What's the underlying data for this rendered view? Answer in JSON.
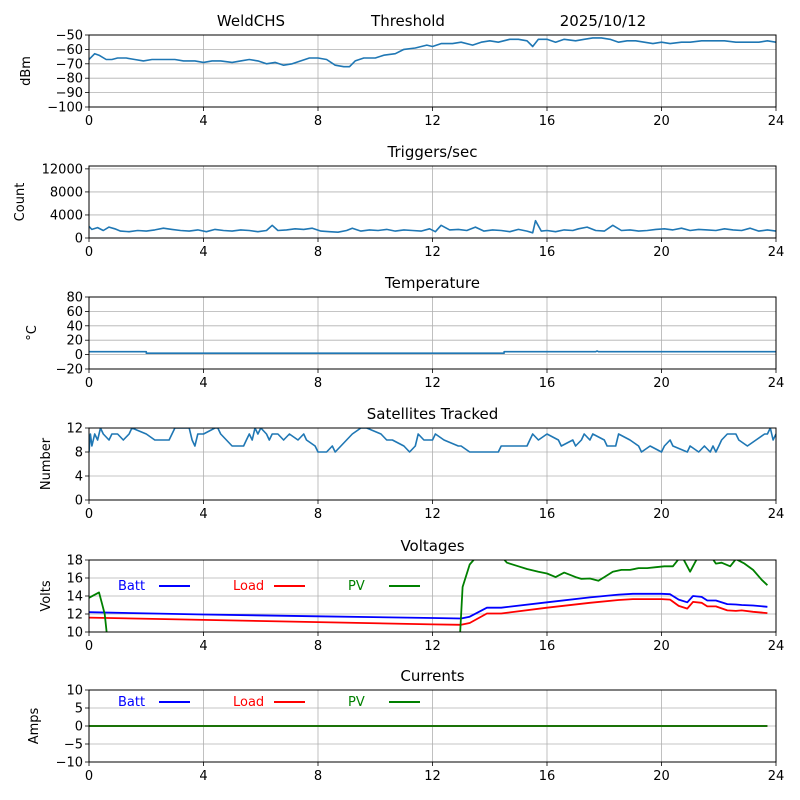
{
  "header": {
    "station": "WeldCHS",
    "mode": "Threshold",
    "date": "2025/10/12"
  },
  "chart_data": [
    {
      "type": "line",
      "title": "",
      "ylabel": "dBm",
      "xlabel": "",
      "xlim": [
        0,
        24
      ],
      "ylim": [
        -100,
        -50
      ],
      "xticks": [
        0,
        4,
        8,
        12,
        16,
        20,
        24
      ],
      "yticks": [
        -100,
        -90,
        -80,
        -70,
        -60,
        -50
      ],
      "ytick_labels": [
        "−100",
        "−90",
        "−80",
        "−70",
        "−60",
        "−50"
      ],
      "grid": true,
      "series": [
        {
          "name": "Threshold",
          "color": "#1f77b4",
          "x": [
            0,
            0.2,
            0.35,
            0.6,
            0.8,
            1.0,
            1.3,
            1.6,
            1.9,
            2.2,
            2.6,
            3.0,
            3.3,
            3.7,
            4.0,
            4.3,
            4.6,
            5.0,
            5.3,
            5.6,
            5.9,
            6.2,
            6.5,
            6.8,
            7.1,
            7.4,
            7.7,
            8.0,
            8.3,
            8.6,
            8.9,
            9.1,
            9.3,
            9.6,
            10.0,
            10.3,
            10.7,
            11.0,
            11.4,
            11.8,
            12.0,
            12.3,
            12.7,
            13.0,
            13.4,
            13.7,
            14.0,
            14.3,
            14.7,
            15.0,
            15.3,
            15.5,
            15.7,
            16.0,
            16.3,
            16.6,
            17.0,
            17.3,
            17.6,
            17.9,
            18.2,
            18.5,
            18.8,
            19.1,
            19.4,
            19.7,
            20.0,
            20.3,
            20.7,
            21.0,
            21.4,
            21.8,
            22.2,
            22.6,
            23.0,
            23.4,
            23.7,
            24.0
          ],
          "y": [
            -67,
            -63,
            -64,
            -67,
            -67,
            -66,
            -66,
            -67,
            -68,
            -67,
            -67,
            -67,
            -68,
            -68,
            -69,
            -68,
            -68,
            -69,
            -68,
            -67,
            -68,
            -70,
            -69,
            -71,
            -70,
            -68,
            -66,
            -66,
            -67,
            -71,
            -72,
            -72,
            -68,
            -66,
            -66,
            -64,
            -63,
            -60,
            -59,
            -57,
            -58,
            -56,
            -56,
            -55,
            -57,
            -55,
            -54,
            -55,
            -53,
            -53,
            -54,
            -58,
            -53,
            -53,
            -55,
            -53,
            -54,
            -53,
            -52,
            -52,
            -53,
            -55,
            -54,
            -54,
            -55,
            -56,
            -55,
            -56,
            -55,
            -55,
            -54,
            -54,
            -54,
            -55,
            -55,
            -55,
            -54,
            -55
          ]
        }
      ]
    },
    {
      "type": "line",
      "title": "Triggers/sec",
      "ylabel": "Count",
      "xlabel": "",
      "xlim": [
        0,
        24
      ],
      "ylim": [
        0,
        12500
      ],
      "xticks": [
        0,
        4,
        8,
        12,
        16,
        20,
        24
      ],
      "yticks": [
        0,
        4000,
        8000,
        12000
      ],
      "ytick_labels": [
        "0",
        "4000",
        "8000",
        "12000"
      ],
      "grid": true,
      "series": [
        {
          "name": "Triggers",
          "color": "#1f77b4",
          "x": [
            0,
            0.1,
            0.3,
            0.5,
            0.7,
            0.9,
            1.1,
            1.4,
            1.7,
            2.0,
            2.3,
            2.6,
            2.9,
            3.2,
            3.5,
            3.8,
            4.1,
            4.4,
            4.7,
            5.0,
            5.3,
            5.6,
            5.9,
            6.2,
            6.4,
            6.6,
            6.9,
            7.2,
            7.5,
            7.8,
            8.1,
            8.4,
            8.7,
            9.0,
            9.2,
            9.5,
            9.8,
            10.1,
            10.4,
            10.7,
            11.0,
            11.3,
            11.6,
            11.9,
            12.1,
            12.3,
            12.6,
            12.9,
            13.2,
            13.5,
            13.8,
            14.1,
            14.4,
            14.7,
            15.0,
            15.3,
            15.5,
            15.6,
            15.8,
            16.0,
            16.3,
            16.6,
            16.9,
            17.1,
            17.4,
            17.7,
            18.0,
            18.3,
            18.6,
            18.9,
            19.2,
            19.5,
            19.8,
            20.1,
            20.4,
            20.7,
            21.0,
            21.3,
            21.6,
            21.9,
            22.2,
            22.5,
            22.8,
            23.1,
            23.4,
            23.7,
            24.0
          ],
          "y": [
            2000,
            1500,
            1800,
            1300,
            1900,
            1600,
            1200,
            1100,
            1300,
            1200,
            1400,
            1700,
            1500,
            1300,
            1200,
            1400,
            1100,
            1500,
            1300,
            1200,
            1400,
            1300,
            1100,
            1300,
            2200,
            1300,
            1400,
            1600,
            1500,
            1700,
            1200,
            1100,
            1000,
            1300,
            1700,
            1200,
            1400,
            1300,
            1500,
            1200,
            1400,
            1300,
            1200,
            1600,
            1100,
            2200,
            1400,
            1500,
            1300,
            1900,
            1200,
            1400,
            1300,
            1100,
            1500,
            1200,
            900,
            3000,
            1200,
            1300,
            1100,
            1400,
            1300,
            1600,
            1900,
            1300,
            1200,
            2200,
            1300,
            1400,
            1200,
            1300,
            1500,
            1600,
            1400,
            1700,
            1300,
            1500,
            1400,
            1300,
            1600,
            1400,
            1300,
            1700,
            1200,
            1400,
            1200
          ]
        }
      ]
    },
    {
      "type": "line",
      "title": "Temperature",
      "ylabel": "°C",
      "xlabel": "",
      "xlim": [
        0,
        24
      ],
      "ylim": [
        -20,
        80
      ],
      "xticks": [
        0,
        4,
        8,
        12,
        16,
        20,
        24
      ],
      "yticks": [
        -20,
        0,
        20,
        40,
        60,
        80
      ],
      "ytick_labels": [
        "−20",
        "0",
        "20",
        "40",
        "60",
        "80"
      ],
      "grid": true,
      "series": [
        {
          "name": "Temperature",
          "color": "#1f77b4",
          "x": [
            0,
            2.0,
            2.0,
            14.5,
            14.5,
            17.7,
            17.75,
            17.8,
            24.0
          ],
          "y": [
            4,
            4,
            2,
            2,
            4,
            4,
            5,
            4,
            4
          ]
        }
      ]
    },
    {
      "type": "line",
      "title": "Satellites Tracked",
      "ylabel": "Number",
      "xlabel": "",
      "xlim": [
        0,
        24
      ],
      "ylim": [
        0,
        12
      ],
      "xticks": [
        0,
        4,
        8,
        12,
        16,
        20,
        24
      ],
      "yticks": [
        0,
        4,
        8,
        12
      ],
      "ytick_labels": [
        "0",
        "4",
        "8",
        "12"
      ],
      "grid": true,
      "series": [
        {
          "name": "Satellites",
          "color": "#1f77b4",
          "x": [
            0,
            0.05,
            0.1,
            0.2,
            0.3,
            0.4,
            0.5,
            0.7,
            0.8,
            1.0,
            1.2,
            1.4,
            1.5,
            2.0,
            2.3,
            2.8,
            2.9,
            3.0,
            3.1,
            3.5,
            3.6,
            3.7,
            3.8,
            4.0,
            4.4,
            4.5,
            4.6,
            4.8,
            5.0,
            5.4,
            5.5,
            5.6,
            5.7,
            5.8,
            5.9,
            6.0,
            6.2,
            6.3,
            6.4,
            6.6,
            6.8,
            7.0,
            7.3,
            7.5,
            7.6,
            7.9,
            8.0,
            8.3,
            8.5,
            8.6,
            8.8,
            9.0,
            9.2,
            9.5,
            9.7,
            10.2,
            10.4,
            10.6,
            11.0,
            11.2,
            11.4,
            11.5,
            11.7,
            12.0,
            12.1,
            12.4,
            12.9,
            13.0,
            13.3,
            13.4,
            14.3,
            14.4,
            14.6,
            15.3,
            15.4,
            15.5,
            15.7,
            16.0,
            16.4,
            16.5,
            16.9,
            17.0,
            17.2,
            17.3,
            17.5,
            17.6,
            18.0,
            18.1,
            18.4,
            18.5,
            18.9,
            19.2,
            19.3,
            19.6,
            20.0,
            20.1,
            20.3,
            20.4,
            20.9,
            21.0,
            21.3,
            21.5,
            21.7,
            21.8,
            21.9,
            22.0,
            22.1,
            22.3,
            22.6,
            22.7,
            23.0,
            23.3,
            23.6,
            23.7,
            23.8,
            23.9,
            24.0
          ],
          "y": [
            8,
            11,
            9,
            11,
            10,
            12,
            11,
            10,
            11,
            11,
            10,
            11,
            12,
            11,
            10,
            10,
            11,
            12,
            12,
            12,
            10,
            9,
            11,
            11,
            12,
            12,
            11,
            10,
            9,
            9,
            10,
            11,
            10,
            12,
            11,
            12,
            11,
            10,
            11,
            11,
            10,
            11,
            10,
            11,
            10,
            9,
            8,
            8,
            9,
            8,
            9,
            10,
            11,
            12,
            12,
            11,
            10,
            10,
            9,
            8,
            9,
            11,
            10,
            10,
            11,
            10,
            9,
            9,
            8,
            8,
            8,
            9,
            9,
            9,
            10,
            11,
            10,
            11,
            10,
            9,
            10,
            9,
            10,
            11,
            10,
            11,
            10,
            9,
            9,
            11,
            10,
            9,
            8,
            9,
            8,
            9,
            10,
            9,
            8,
            9,
            8,
            9,
            8,
            9,
            8,
            9,
            10,
            11,
            11,
            10,
            9,
            10,
            11,
            11,
            12,
            10,
            11
          ]
        }
      ]
    },
    {
      "type": "line",
      "title": "Voltages",
      "ylabel": "Volts",
      "xlabel": "",
      "xlim": [
        0,
        24
      ],
      "ylim": [
        10,
        18
      ],
      "xticks": [
        0,
        4,
        8,
        12,
        16,
        20,
        24
      ],
      "yticks": [
        10,
        12,
        14,
        16,
        18
      ],
      "ytick_labels": [
        "10",
        "12",
        "14",
        "16",
        "18"
      ],
      "grid": true,
      "legend": {
        "placement": "top-left",
        "items": [
          {
            "label": "Batt",
            "color": "#0000ff"
          },
          {
            "label": "Load",
            "color": "#ff0000"
          },
          {
            "label": "PV",
            "color": "#008000"
          }
        ]
      },
      "series": [
        {
          "name": "Batt",
          "color": "#0000ff",
          "x": [
            0,
            4,
            8,
            12,
            13,
            13.3,
            13.9,
            14.4,
            16.0,
            17.5,
            18.5,
            19.0,
            20.0,
            20.3,
            20.6,
            20.9,
            21.1,
            21.4,
            21.6,
            21.9,
            22.3,
            22.6,
            22.8,
            23.2,
            23.7
          ],
          "y": [
            12.2,
            11.95,
            11.75,
            11.55,
            11.5,
            11.7,
            12.7,
            12.7,
            13.3,
            13.85,
            14.15,
            14.25,
            14.25,
            14.2,
            13.6,
            13.3,
            14.0,
            13.9,
            13.5,
            13.5,
            13.1,
            13.05,
            13.0,
            12.95,
            12.8
          ]
        },
        {
          "name": "Load",
          "color": "#ff0000",
          "x": [
            0,
            4,
            8,
            12,
            13,
            13.3,
            13.9,
            14.4,
            16.0,
            17.5,
            18.5,
            19.0,
            20.0,
            20.3,
            20.6,
            20.9,
            21.1,
            21.4,
            21.6,
            21.9,
            22.3,
            22.6,
            22.8,
            23.2,
            23.7
          ],
          "y": [
            11.6,
            11.35,
            11.1,
            10.85,
            10.8,
            11.0,
            12.05,
            12.05,
            12.7,
            13.25,
            13.55,
            13.65,
            13.65,
            13.6,
            12.9,
            12.6,
            13.35,
            13.25,
            12.85,
            12.85,
            12.4,
            12.35,
            12.4,
            12.25,
            12.1
          ]
        },
        {
          "name": "PV",
          "color": "#008000",
          "x": [
            0,
            0.35,
            0.45,
            0.55,
            0.65,
            12.95,
            13.05,
            13.3,
            13.6,
            14.0,
            14.3,
            14.6,
            15.0,
            15.3,
            15.7,
            16.0,
            16.3,
            16.6,
            17.0,
            17.2,
            17.5,
            17.8,
            18.0,
            18.3,
            18.6,
            18.9,
            19.2,
            19.5,
            19.8,
            20.1,
            20.4,
            20.7,
            21.0,
            21.3,
            21.6,
            21.9,
            22.1,
            22.4,
            22.6,
            22.9,
            23.2,
            23.5,
            23.7
          ],
          "y": [
            13.8,
            14.4,
            13.2,
            12.0,
            9.0,
            9.0,
            15.0,
            17.5,
            18.6,
            19.0,
            18.8,
            17.7,
            17.3,
            17.0,
            16.7,
            16.5,
            16.1,
            16.6,
            16.1,
            15.9,
            15.95,
            15.7,
            16.1,
            16.7,
            16.9,
            16.9,
            17.1,
            17.1,
            17.2,
            17.3,
            17.3,
            18.5,
            16.7,
            18.5,
            19.0,
            17.6,
            17.7,
            17.3,
            18.1,
            17.6,
            16.9,
            15.8,
            15.2
          ]
        }
      ]
    },
    {
      "type": "line",
      "title": "Currents",
      "ylabel": "Amps",
      "xlabel": "",
      "xlim": [
        0,
        24
      ],
      "ylim": [
        -10,
        10
      ],
      "xticks": [
        0,
        4,
        8,
        12,
        16,
        20,
        24
      ],
      "yticks": [
        -10,
        -5,
        0,
        5,
        10
      ],
      "ytick_labels": [
        "−10",
        "−5",
        "0",
        "5",
        "10"
      ],
      "grid": true,
      "legend": {
        "placement": "top-left",
        "items": [
          {
            "label": "Batt",
            "color": "#0000ff"
          },
          {
            "label": "Load",
            "color": "#ff0000"
          },
          {
            "label": "PV",
            "color": "#008000"
          }
        ]
      },
      "series": [
        {
          "name": "Batt",
          "color": "#0000ff",
          "x": [
            0,
            23.7
          ],
          "y": [
            0,
            0
          ]
        },
        {
          "name": "Load",
          "color": "#ff0000",
          "x": [
            0,
            23.7
          ],
          "y": [
            0,
            0
          ]
        },
        {
          "name": "PV",
          "color": "#008000",
          "x": [
            0,
            23.7
          ],
          "y": [
            0,
            0
          ]
        }
      ]
    }
  ]
}
